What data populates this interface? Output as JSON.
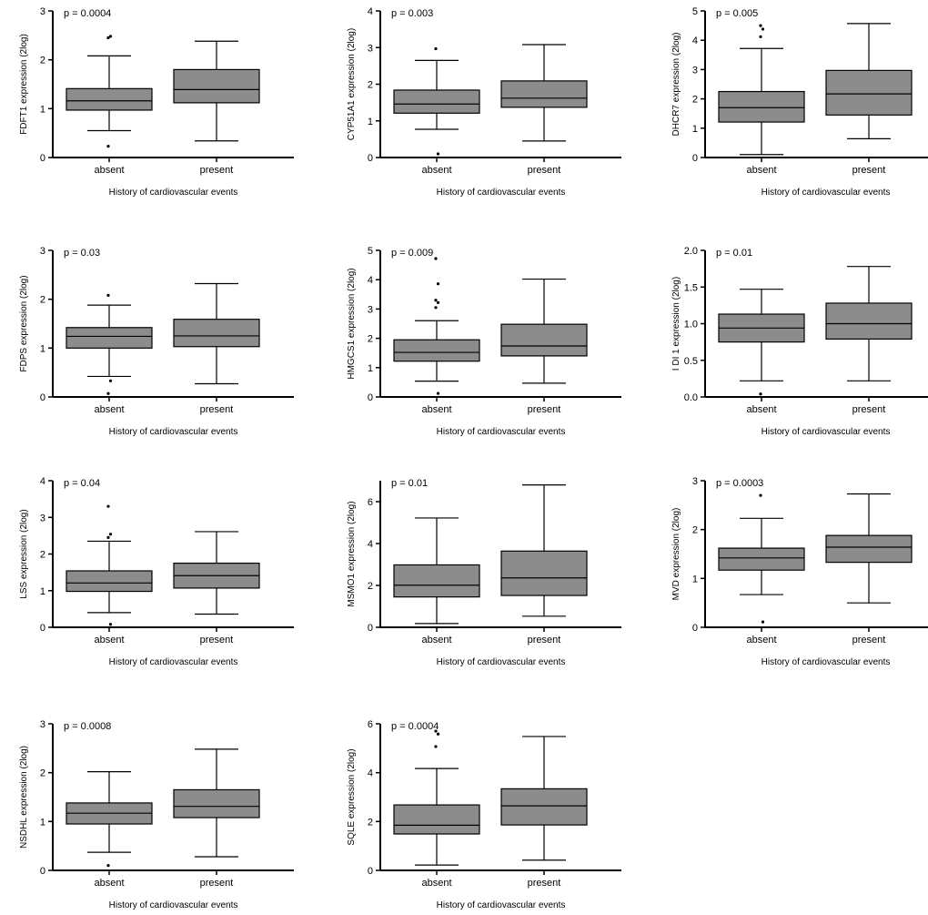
{
  "chart_data": [
    {
      "type": "box",
      "ylabel": "FDFT1 expression (2log)",
      "xlabel": "History of cardiovascular events",
      "annotation": "p = 0.0004",
      "ylim": [
        0,
        3
      ],
      "yticks": [
        "0",
        "1",
        "2",
        "3"
      ],
      "categories": [
        "absent",
        "present"
      ],
      "boxes": [
        {
          "min": 0.55,
          "q1": 0.97,
          "median": 1.16,
          "q3": 1.41,
          "max": 2.08,
          "outliers": [
            2.45,
            2.48,
            0.23
          ]
        },
        {
          "min": 0.34,
          "q1": 1.12,
          "median": 1.39,
          "q3": 1.8,
          "max": 2.38,
          "outliers": []
        }
      ]
    },
    {
      "type": "box",
      "ylabel": "CYP51A1 expression (2log)",
      "xlabel": "History of cardiovascular events",
      "annotation": "p = 0.003",
      "ylim": [
        0,
        4
      ],
      "yticks": [
        "0",
        "1",
        "2",
        "3",
        "4"
      ],
      "categories": [
        "absent",
        "present"
      ],
      "boxes": [
        {
          "min": 0.77,
          "q1": 1.21,
          "median": 1.46,
          "q3": 1.84,
          "max": 2.65,
          "outliers": [
            2.97,
            0.1
          ]
        },
        {
          "min": 0.45,
          "q1": 1.37,
          "median": 1.62,
          "q3": 2.09,
          "max": 3.08,
          "outliers": []
        }
      ]
    },
    {
      "type": "box",
      "ylabel": "DHCR7 expression (2log)",
      "xlabel": "History of cardiovascular events",
      "annotation": "p = 0.005",
      "ylim": [
        0,
        5
      ],
      "yticks": [
        "0",
        "1",
        "2",
        "3",
        "4",
        "5"
      ],
      "categories": [
        "absent",
        "present"
      ],
      "boxes": [
        {
          "min": 0.1,
          "q1": 1.21,
          "median": 1.7,
          "q3": 2.25,
          "max": 3.72,
          "outliers": [
            4.5,
            4.38,
            4.12
          ]
        },
        {
          "min": 0.64,
          "q1": 1.45,
          "median": 2.17,
          "q3": 2.97,
          "max": 4.57,
          "outliers": []
        }
      ]
    },
    {
      "type": "box",
      "ylabel": "FDPS expression (2log)",
      "xlabel": "History of cardiovascular events",
      "annotation": "p = 0.03",
      "ylim": [
        0,
        3
      ],
      "yticks": [
        "0",
        "1",
        "2",
        "3"
      ],
      "categories": [
        "absent",
        "present"
      ],
      "boxes": [
        {
          "min": 0.42,
          "q1": 1.0,
          "median": 1.24,
          "q3": 1.42,
          "max": 1.88,
          "outliers": [
            2.08,
            0.33,
            0.07
          ]
        },
        {
          "min": 0.27,
          "q1": 1.03,
          "median": 1.25,
          "q3": 1.59,
          "max": 2.32,
          "outliers": []
        }
      ]
    },
    {
      "type": "box",
      "ylabel": "HMGCS1 expression (2log)",
      "xlabel": "History of cardiovascular events",
      "annotation": "p = 0.009",
      "ylim": [
        0,
        5
      ],
      "yticks": [
        "0",
        "1",
        "2",
        "3",
        "4",
        "5"
      ],
      "categories": [
        "absent",
        "present"
      ],
      "boxes": [
        {
          "min": 0.54,
          "q1": 1.22,
          "median": 1.52,
          "q3": 1.95,
          "max": 2.6,
          "outliers": [
            4.72,
            3.86,
            3.3,
            3.22,
            3.05,
            0.12
          ]
        },
        {
          "min": 0.47,
          "q1": 1.4,
          "median": 1.74,
          "q3": 2.48,
          "max": 4.02,
          "outliers": []
        }
      ]
    },
    {
      "type": "box",
      "ylabel": "I DI 1 expression (2log)",
      "xlabel": "History of cardiovascular events",
      "annotation": "p = 0.01",
      "ylim": [
        0,
        2
      ],
      "yticks": [
        "0.0",
        "0.5",
        "1.0",
        "1.5",
        "2.0"
      ],
      "categories": [
        "absent",
        "present"
      ],
      "boxes": [
        {
          "min": 0.22,
          "q1": 0.75,
          "median": 0.94,
          "q3": 1.13,
          "max": 1.47,
          "outliers": [
            0.04
          ]
        },
        {
          "min": 0.22,
          "q1": 0.79,
          "median": 1.0,
          "q3": 1.28,
          "max": 1.78,
          "outliers": []
        }
      ]
    },
    {
      "type": "box",
      "ylabel": "LSS expression (2log)",
      "xlabel": "History of cardiovascular events",
      "annotation": "p = 0.04",
      "ylim": [
        0,
        4
      ],
      "yticks": [
        "0",
        "1",
        "2",
        "3",
        "4"
      ],
      "categories": [
        "absent",
        "present"
      ],
      "boxes": [
        {
          "min": 0.4,
          "q1": 0.98,
          "median": 1.21,
          "q3": 1.54,
          "max": 2.35,
          "outliers": [
            3.3,
            2.54,
            2.45,
            0.08
          ]
        },
        {
          "min": 0.36,
          "q1": 1.07,
          "median": 1.41,
          "q3": 1.75,
          "max": 2.61,
          "outliers": []
        }
      ]
    },
    {
      "type": "box",
      "ylabel": "MSMO1 expression (2log)",
      "xlabel": "History of cardiovascular events",
      "annotation": "p = 0.01",
      "ylim": [
        0,
        7
      ],
      "yticks": [
        "0",
        "2",
        "4",
        "6"
      ],
      "ytick_values": [
        0,
        2,
        4,
        6
      ],
      "categories": [
        "absent",
        "present"
      ],
      "boxes": [
        {
          "min": 0.18,
          "q1": 1.45,
          "median": 2.01,
          "q3": 2.98,
          "max": 5.22,
          "outliers": []
        },
        {
          "min": 0.53,
          "q1": 1.52,
          "median": 2.36,
          "q3": 3.64,
          "max": 6.8,
          "outliers": []
        }
      ]
    },
    {
      "type": "box",
      "ylabel": "MVD expression (2log)",
      "xlabel": "History of cardiovascular events",
      "annotation": "p = 0.0003",
      "ylim": [
        0,
        3
      ],
      "yticks": [
        "0",
        "1",
        "2",
        "3"
      ],
      "categories": [
        "absent",
        "present"
      ],
      "boxes": [
        {
          "min": 0.67,
          "q1": 1.17,
          "median": 1.42,
          "q3": 1.62,
          "max": 2.23,
          "outliers": [
            2.7,
            0.11
          ]
        },
        {
          "min": 0.5,
          "q1": 1.33,
          "median": 1.64,
          "q3": 1.88,
          "max": 2.73,
          "outliers": []
        }
      ]
    },
    {
      "type": "box",
      "ylabel": "NSDHL expression (2log)",
      "xlabel": "History of cardiovascular events",
      "annotation": "p = 0.0008",
      "ylim": [
        0,
        3
      ],
      "yticks": [
        "0",
        "1",
        "2",
        "3"
      ],
      "categories": [
        "absent",
        "present"
      ],
      "boxes": [
        {
          "min": 0.37,
          "q1": 0.95,
          "median": 1.17,
          "q3": 1.38,
          "max": 2.02,
          "outliers": [
            0.1
          ]
        },
        {
          "min": 0.28,
          "q1": 1.08,
          "median": 1.31,
          "q3": 1.65,
          "max": 2.48,
          "outliers": []
        }
      ]
    },
    {
      "type": "box",
      "ylabel": "SQLE expression (2log)",
      "xlabel": "History of cardiovascular events",
      "annotation": "p = 0.0004",
      "ylim": [
        0,
        6
      ],
      "yticks": [
        "0",
        "2",
        "4",
        "6"
      ],
      "ytick_values": [
        0,
        2,
        4,
        6
      ],
      "categories": [
        "absent",
        "present"
      ],
      "boxes": [
        {
          "min": 0.22,
          "q1": 1.49,
          "median": 1.85,
          "q3": 2.68,
          "max": 4.17,
          "outliers": [
            5.7,
            5.58,
            5.07
          ]
        },
        {
          "min": 0.42,
          "q1": 1.86,
          "median": 2.64,
          "q3": 3.34,
          "max": 5.48,
          "outliers": []
        }
      ]
    }
  ],
  "colors": {
    "box_fill": "#8c8c8c",
    "line": "#000000",
    "background": "#ffffff"
  }
}
